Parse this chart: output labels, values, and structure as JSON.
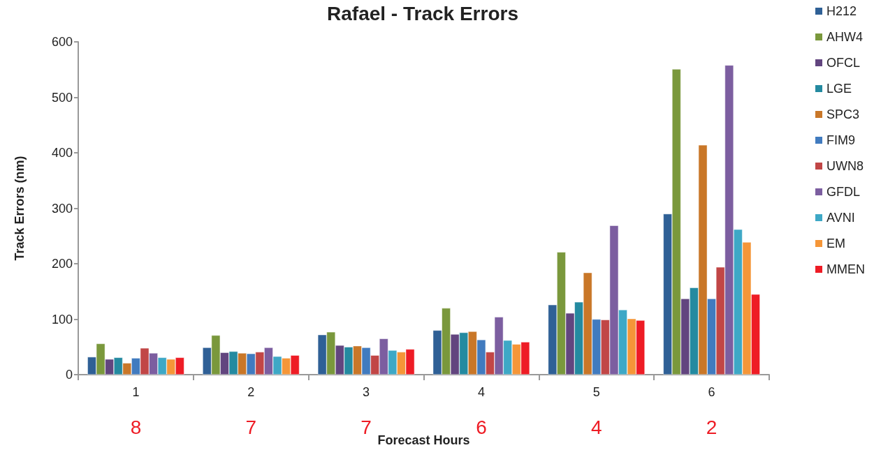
{
  "chart_data": {
    "type": "bar",
    "title": "Rafael - Track Errors",
    "xlabel": "Forecast Hours",
    "ylabel": "Track Errors (nm)",
    "categories": [
      "1",
      "2",
      "3",
      "4",
      "5",
      "6"
    ],
    "series": [
      {
        "name": "H212",
        "color": "#2f6096",
        "values": [
          32,
          49,
          72,
          80,
          126,
          290
        ]
      },
      {
        "name": "AHW4",
        "color": "#7a983c",
        "values": [
          56,
          71,
          77,
          120,
          221,
          551
        ]
      },
      {
        "name": "OFCL",
        "color": "#62457f",
        "values": [
          28,
          40,
          53,
          73,
          111,
          137
        ]
      },
      {
        "name": "LGE",
        "color": "#248aa0",
        "values": [
          31,
          42,
          50,
          76,
          131,
          157
        ]
      },
      {
        "name": "SPC3",
        "color": "#c97728",
        "values": [
          21,
          39,
          52,
          78,
          184,
          414
        ]
      },
      {
        "name": "FIM9",
        "color": "#417bbf",
        "values": [
          30,
          38,
          49,
          63,
          100,
          137
        ]
      },
      {
        "name": "UWN8",
        "color": "#c14646",
        "values": [
          48,
          41,
          35,
          41,
          99,
          194
        ]
      },
      {
        "name": "GFDL",
        "color": "#7c5ea0",
        "values": [
          39,
          49,
          65,
          104,
          269,
          558
        ]
      },
      {
        "name": "AVNI",
        "color": "#3ea8c6",
        "values": [
          31,
          33,
          44,
          62,
          117,
          262
        ]
      },
      {
        "name": "EM",
        "color": "#f59638",
        "values": [
          28,
          30,
          41,
          55,
          101,
          239
        ]
      },
      {
        "name": "MMEN",
        "color": "#ee1c25",
        "values": [
          31,
          35,
          46,
          59,
          98,
          145
        ]
      }
    ],
    "ylim": [
      0,
      600
    ],
    "yticks": [
      0,
      100,
      200,
      300,
      400,
      500,
      600
    ],
    "grid": false,
    "legend": "right",
    "annotations": [
      "8",
      "7",
      "7",
      "6",
      "4",
      "2"
    ]
  }
}
